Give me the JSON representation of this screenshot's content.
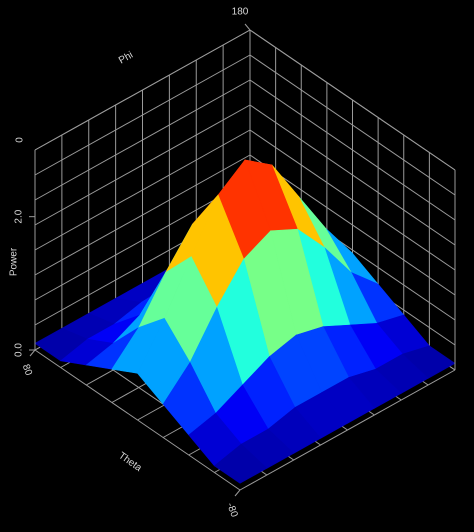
{
  "chart_data": {
    "type": "surface",
    "x_label": "Theta",
    "y_label": "Phi",
    "z_label": "Power",
    "theta": [
      80,
      60,
      40,
      20,
      0,
      -20,
      -40,
      -60,
      -80
    ],
    "phi": [
      0,
      22.5,
      45,
      67.5,
      90,
      112.5,
      135,
      157.5,
      180
    ],
    "z": [
      [
        0.1,
        0.1,
        0.3,
        0.5,
        0.7,
        0.5,
        0.3,
        0.1,
        0.1
      ],
      [
        0.1,
        0.2,
        0.4,
        0.9,
        1.3,
        0.9,
        0.4,
        0.2,
        0.1
      ],
      [
        0.1,
        0.2,
        0.6,
        1.5,
        2.0,
        1.5,
        0.6,
        0.2,
        0.1
      ],
      [
        0.1,
        0.3,
        0.8,
        2.0,
        2.7,
        2.0,
        0.8,
        0.3,
        0.1
      ],
      [
        0.1,
        0.3,
        0.9,
        2.2,
        3.0,
        2.2,
        0.9,
        0.3,
        0.1
      ],
      [
        0.1,
        0.3,
        0.8,
        2.0,
        2.7,
        2.0,
        0.8,
        0.3,
        0.1
      ],
      [
        0.1,
        0.2,
        0.6,
        1.5,
        2.0,
        1.5,
        0.6,
        0.2,
        0.1
      ],
      [
        0.1,
        0.2,
        0.4,
        0.9,
        1.3,
        0.9,
        0.4,
        0.2,
        0.1
      ],
      [
        0.1,
        0.1,
        0.3,
        0.5,
        0.7,
        0.5,
        0.3,
        0.1,
        0.1
      ]
    ],
    "xlim": [
      80,
      -80
    ],
    "xticks": [
      80,
      -80
    ],
    "ylim": [
      0,
      180
    ],
    "yticks": [
      180
    ],
    "zlim": [
      0,
      3
    ],
    "zticks": [
      {
        "value": 0,
        "label": "0.0"
      },
      {
        "value": 2,
        "label": "2.0"
      }
    ],
    "annotations": [
      "0"
    ],
    "colormap": "jet"
  }
}
